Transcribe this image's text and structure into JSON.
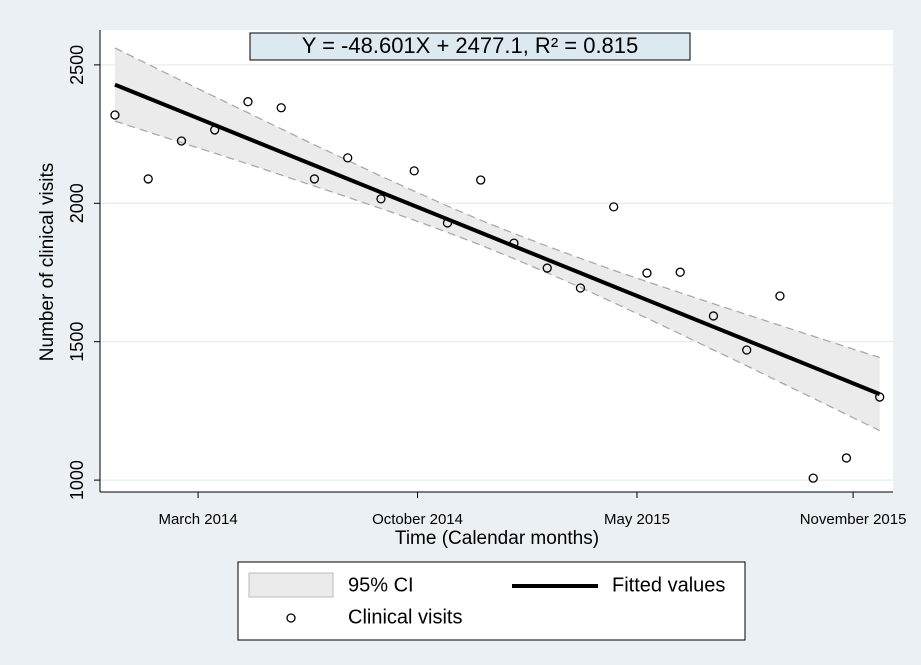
{
  "chart_data": {
    "type": "scatter",
    "title": "Y = -48.601X + 2477.1, R² = 0.815",
    "x_label": "Time (Calendar months)",
    "y_label": "Number of clinical visits",
    "x": [
      1,
      2,
      3,
      4,
      5,
      6,
      7,
      8,
      9,
      10,
      11,
      12,
      13,
      14,
      15,
      16,
      17,
      18,
      19,
      20,
      21,
      22,
      23,
      24
    ],
    "xlim": [
      0.55,
      24.4
    ],
    "xticks": [
      {
        "value": 3.5,
        "label": "March 2014"
      },
      {
        "value": 10.1,
        "label": "October 2014"
      },
      {
        "value": 16.7,
        "label": "May 2015"
      },
      {
        "value": 23.2,
        "label": "November 2015"
      }
    ],
    "ylim": [
      957,
      2626
    ],
    "yticks": [
      1000,
      1500,
      2000,
      2500
    ],
    "grid": true,
    "series": [
      {
        "name": "95% CI",
        "color": "#ebebeb",
        "upper": [
          2561,
          2502,
          2443,
          2385,
          2327,
          2269,
          2211,
          2155,
          2098,
          2044,
          1990,
          1939,
          1891,
          1845,
          1801,
          1758,
          1717,
          1677,
          1637,
          1598,
          1559,
          1520,
          1481,
          1443
        ],
        "lower": [
          2297,
          2258,
          2219,
          2181,
          2142,
          2102,
          2062,
          2022,
          1981,
          1939,
          1895,
          1849,
          1800,
          1749,
          1696,
          1641,
          1585,
          1528,
          1470,
          1413,
          1354,
          1296,
          1237,
          1179
        ]
      },
      {
        "name": "Fitted values",
        "color": "#000000",
        "values": [
          2428.5,
          2379.9,
          2331.3,
          2282.7,
          2234.1,
          2185.5,
          2136.9,
          2088.3,
          2039.7,
          1991.1,
          1942.5,
          1893.9,
          1845.3,
          1796.7,
          1748.1,
          1699.5,
          1650.9,
          1602.3,
          1553.7,
          1505.1,
          1456.5,
          1407.9,
          1359.3,
          1310.7
        ]
      },
      {
        "name": "Clinical visits",
        "color": "#000000",
        "values": [
          2319,
          2088,
          2225,
          2265,
          2367,
          2345,
          2088,
          2164,
          2016,
          2117,
          1929,
          2084,
          1856,
          1766,
          1694,
          1987,
          1748,
          1751,
          1593,
          1470,
          1665,
          1007,
          1080,
          1300
        ]
      }
    ]
  }
}
